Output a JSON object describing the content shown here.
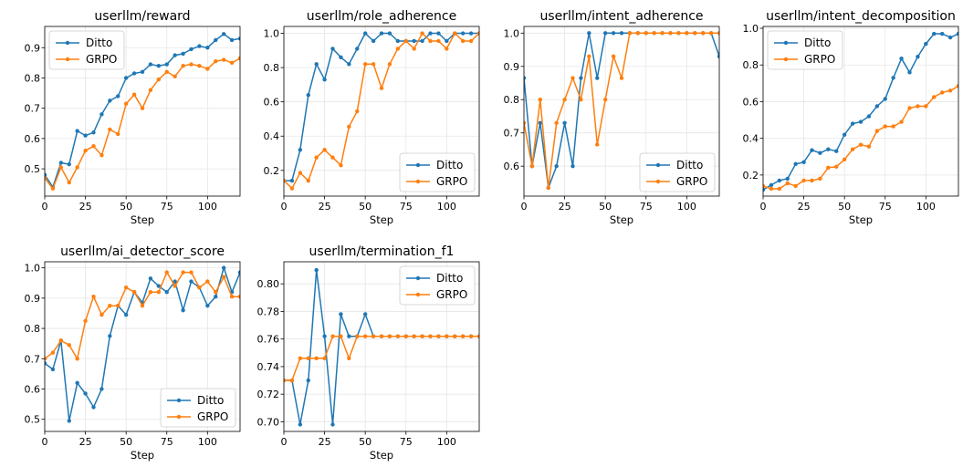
{
  "colors": {
    "ditto": "#1f77b4",
    "grpo": "#ff7f0e"
  },
  "chart_data": [
    {
      "type": "line",
      "title": "userllm/reward",
      "xlabel": "Step",
      "xlim": [
        0,
        120
      ],
      "ylim": [
        0.41,
        0.97
      ],
      "xticks": [
        0,
        25,
        50,
        75,
        100
      ],
      "yticks": [
        0.5,
        0.6,
        0.7,
        0.8,
        0.9
      ],
      "ytick_labels": [
        "0.5",
        "0.6",
        "0.7",
        "0.8",
        "0.9"
      ],
      "legend": "upper-left",
      "series": [
        {
          "name": "Ditto",
          "x": [
            0,
            5,
            10,
            15,
            20,
            25,
            30,
            35,
            40,
            45,
            50,
            55,
            60,
            65,
            70,
            75,
            80,
            85,
            90,
            95,
            100,
            105,
            110,
            115,
            120
          ],
          "y": [
            0.48,
            0.44,
            0.52,
            0.515,
            0.625,
            0.61,
            0.62,
            0.68,
            0.725,
            0.74,
            0.8,
            0.815,
            0.82,
            0.845,
            0.84,
            0.845,
            0.875,
            0.88,
            0.895,
            0.905,
            0.9,
            0.925,
            0.945,
            0.925,
            0.93
          ]
        },
        {
          "name": "GRPO",
          "x": [
            0,
            5,
            10,
            15,
            20,
            25,
            30,
            35,
            40,
            45,
            50,
            55,
            60,
            65,
            70,
            75,
            80,
            85,
            90,
            95,
            100,
            105,
            110,
            115,
            120
          ],
          "y": [
            0.47,
            0.435,
            0.505,
            0.455,
            0.505,
            0.56,
            0.575,
            0.545,
            0.63,
            0.615,
            0.715,
            0.745,
            0.7,
            0.76,
            0.795,
            0.82,
            0.805,
            0.84,
            0.845,
            0.84,
            0.83,
            0.855,
            0.86,
            0.85,
            0.865
          ]
        }
      ]
    },
    {
      "type": "line",
      "title": "userllm/role_adherence",
      "xlabel": "Step",
      "xlim": [
        0,
        120
      ],
      "ylim": [
        0.05,
        1.04
      ],
      "xticks": [
        0,
        25,
        50,
        75,
        100
      ],
      "yticks": [
        0.2,
        0.4,
        0.6,
        0.8,
        1.0
      ],
      "ytick_labels": [
        "0.2",
        "0.4",
        "0.6",
        "0.8",
        "1.0"
      ],
      "legend": "lower-right",
      "series": [
        {
          "name": "Ditto",
          "x": [
            0,
            5,
            10,
            15,
            20,
            25,
            30,
            35,
            40,
            45,
            50,
            55,
            60,
            65,
            70,
            75,
            80,
            85,
            90,
            95,
            100,
            105,
            110,
            115,
            120
          ],
          "y": [
            0.14,
            0.14,
            0.32,
            0.64,
            0.82,
            0.73,
            0.91,
            0.86,
            0.82,
            0.91,
            1.0,
            0.955,
            1.0,
            1.0,
            0.955,
            0.955,
            0.955,
            0.955,
            1.0,
            1.0,
            0.955,
            1.0,
            1.0,
            1.0,
            1.0
          ]
        },
        {
          "name": "GRPO",
          "x": [
            0,
            5,
            10,
            15,
            20,
            25,
            30,
            35,
            40,
            45,
            50,
            55,
            60,
            65,
            70,
            75,
            80,
            85,
            90,
            95,
            100,
            105,
            110,
            115,
            120
          ],
          "y": [
            0.14,
            0.095,
            0.185,
            0.14,
            0.275,
            0.32,
            0.275,
            0.23,
            0.455,
            0.545,
            0.82,
            0.82,
            0.68,
            0.82,
            0.91,
            0.955,
            0.91,
            1.0,
            0.955,
            0.955,
            0.91,
            1.0,
            0.955,
            0.955,
            1.0
          ]
        }
      ]
    },
    {
      "type": "line",
      "title": "userllm/intent_adherence",
      "xlabel": "Step",
      "xlim": [
        0,
        120
      ],
      "ylim": [
        0.51,
        1.02
      ],
      "xticks": [
        0,
        25,
        50,
        75,
        100
      ],
      "yticks": [
        0.6,
        0.7,
        0.8,
        0.9,
        1.0
      ],
      "ytick_labels": [
        "0.6",
        "0.7",
        "0.8",
        "0.9",
        "1.0"
      ],
      "legend": "lower-right",
      "series": [
        {
          "name": "Ditto",
          "x": [
            0,
            5,
            10,
            15,
            20,
            25,
            30,
            35,
            40,
            45,
            50,
            55,
            60,
            65,
            70,
            75,
            80,
            85,
            90,
            95,
            100,
            105,
            110,
            115,
            120
          ],
          "y": [
            0.865,
            0.6,
            0.73,
            0.535,
            0.6,
            0.73,
            0.6,
            0.865,
            1.0,
            0.865,
            1.0,
            1.0,
            1.0,
            1.0,
            1.0,
            1.0,
            1.0,
            1.0,
            1.0,
            1.0,
            1.0,
            1.0,
            1.0,
            1.0,
            0.93
          ]
        },
        {
          "name": "GRPO",
          "x": [
            0,
            5,
            10,
            15,
            20,
            25,
            30,
            35,
            40,
            45,
            50,
            55,
            60,
            65,
            70,
            75,
            80,
            85,
            90,
            95,
            100,
            105,
            110,
            115,
            120
          ],
          "y": [
            0.73,
            0.6,
            0.8,
            0.535,
            0.73,
            0.8,
            0.865,
            0.8,
            0.93,
            0.665,
            0.8,
            0.93,
            0.865,
            1.0,
            1.0,
            1.0,
            1.0,
            1.0,
            1.0,
            1.0,
            1.0,
            1.0,
            1.0,
            1.0,
            1.0
          ]
        }
      ]
    },
    {
      "type": "line",
      "title": "userllm/intent_decomposition",
      "xlabel": "Step",
      "xlim": [
        0,
        120
      ],
      "ylim": [
        0.085,
        1.01
      ],
      "xticks": [
        0,
        25,
        50,
        75,
        100
      ],
      "yticks": [
        0.2,
        0.4,
        0.6,
        0.8,
        1.0
      ],
      "ytick_labels": [
        "0.2",
        "0.4",
        "0.6",
        "0.8",
        "1.0"
      ],
      "legend": "upper-left",
      "series": [
        {
          "name": "Ditto",
          "x": [
            0,
            5,
            10,
            15,
            20,
            25,
            30,
            35,
            40,
            45,
            50,
            55,
            60,
            65,
            70,
            75,
            80,
            85,
            90,
            95,
            100,
            105,
            110,
            115,
            120
          ],
          "y": [
            0.12,
            0.145,
            0.17,
            0.18,
            0.26,
            0.27,
            0.335,
            0.32,
            0.34,
            0.33,
            0.42,
            0.48,
            0.49,
            0.52,
            0.575,
            0.615,
            0.73,
            0.835,
            0.76,
            0.845,
            0.915,
            0.97,
            0.97,
            0.95,
            0.97
          ]
        },
        {
          "name": "GRPO",
          "x": [
            0,
            5,
            10,
            15,
            20,
            25,
            30,
            35,
            40,
            45,
            50,
            55,
            60,
            65,
            70,
            75,
            80,
            85,
            90,
            95,
            100,
            105,
            110,
            115,
            120
          ],
          "y": [
            0.14,
            0.125,
            0.125,
            0.155,
            0.14,
            0.17,
            0.17,
            0.18,
            0.24,
            0.245,
            0.285,
            0.34,
            0.365,
            0.355,
            0.44,
            0.465,
            0.465,
            0.49,
            0.565,
            0.575,
            0.575,
            0.625,
            0.65,
            0.66,
            0.685
          ]
        }
      ]
    },
    {
      "type": "line",
      "title": "userllm/ai_detector_score",
      "xlabel": "Step",
      "xlim": [
        0,
        120
      ],
      "ylim": [
        0.46,
        1.02
      ],
      "xticks": [
        0,
        25,
        50,
        75,
        100
      ],
      "yticks": [
        0.5,
        0.6,
        0.7,
        0.8,
        0.9,
        1.0
      ],
      "ytick_labels": [
        "0.5",
        "0.6",
        "0.7",
        "0.8",
        "0.9",
        "1.0"
      ],
      "legend": "lower-right",
      "series": [
        {
          "name": "Ditto",
          "x": [
            0,
            5,
            10,
            15,
            20,
            25,
            30,
            35,
            40,
            45,
            50,
            55,
            60,
            65,
            70,
            75,
            80,
            85,
            90,
            95,
            100,
            105,
            110,
            115,
            120
          ],
          "y": [
            0.685,
            0.665,
            0.76,
            0.495,
            0.62,
            0.585,
            0.54,
            0.6,
            0.775,
            0.875,
            0.845,
            0.92,
            0.885,
            0.965,
            0.94,
            0.92,
            0.955,
            0.86,
            0.955,
            0.935,
            0.875,
            0.905,
            1.0,
            0.92,
            0.985
          ]
        },
        {
          "name": "GRPO",
          "x": [
            0,
            5,
            10,
            15,
            20,
            25,
            30,
            35,
            40,
            45,
            50,
            55,
            60,
            65,
            70,
            75,
            80,
            85,
            90,
            95,
            100,
            105,
            110,
            115,
            120
          ],
          "y": [
            0.7,
            0.72,
            0.76,
            0.745,
            0.7,
            0.825,
            0.905,
            0.845,
            0.875,
            0.875,
            0.935,
            0.92,
            0.875,
            0.92,
            0.92,
            0.985,
            0.94,
            0.985,
            0.985,
            0.935,
            0.955,
            0.92,
            0.97,
            0.905,
            0.905
          ]
        }
      ]
    },
    {
      "type": "line",
      "title": "userllm/termination_f1",
      "xlabel": "Step",
      "xlim": [
        0,
        120
      ],
      "ylim": [
        0.693,
        0.816
      ],
      "xticks": [
        0,
        25,
        50,
        75,
        100
      ],
      "yticks": [
        0.7,
        0.72,
        0.74,
        0.76,
        0.78,
        0.8
      ],
      "ytick_labels": [
        "0.70",
        "0.72",
        "0.74",
        "0.76",
        "0.78",
        "0.80"
      ],
      "legend": "upper-right",
      "series": [
        {
          "name": "Ditto",
          "x": [
            0,
            5,
            10,
            15,
            20,
            25,
            30,
            35,
            40,
            45,
            50,
            55,
            60,
            65,
            70,
            75,
            80,
            85,
            90,
            95,
            100,
            105,
            110,
            115,
            120
          ],
          "y": [
            0.73,
            0.73,
            0.698,
            0.73,
            0.81,
            0.762,
            0.698,
            0.778,
            0.762,
            0.762,
            0.778,
            0.762,
            0.762,
            0.762,
            0.762,
            0.762,
            0.762,
            0.762,
            0.762,
            0.762,
            0.762,
            0.762,
            0.762,
            0.762,
            0.762
          ]
        },
        {
          "name": "GRPO",
          "x": [
            0,
            5,
            10,
            15,
            20,
            25,
            30,
            35,
            40,
            45,
            50,
            55,
            60,
            65,
            70,
            75,
            80,
            85,
            90,
            95,
            100,
            105,
            110,
            115,
            120
          ],
          "y": [
            0.73,
            0.73,
            0.746,
            0.746,
            0.746,
            0.746,
            0.762,
            0.762,
            0.746,
            0.762,
            0.762,
            0.762,
            0.762,
            0.762,
            0.762,
            0.762,
            0.762,
            0.762,
            0.762,
            0.762,
            0.762,
            0.762,
            0.762,
            0.762,
            0.762
          ]
        }
      ]
    }
  ]
}
